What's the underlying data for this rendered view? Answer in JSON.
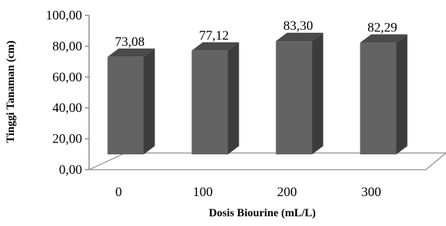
{
  "chart_data": {
    "type": "bar",
    "title": "",
    "xlabel": "Dosis Biourine (mL/L)",
    "ylabel": "Tinggi Tanaman (cm)",
    "categories": [
      "0",
      "100",
      "200",
      "300"
    ],
    "values": [
      73.08,
      77.12,
      83.3,
      82.29
    ],
    "data_labels": [
      "73,08",
      "77,12",
      "83,30",
      "82,29"
    ],
    "y_ticks": [
      "0,00",
      "20,00",
      "40,00",
      "60,00",
      "80,00",
      "100,00"
    ],
    "ylim": [
      0,
      100
    ],
    "grid": false,
    "legend": "none",
    "style": "3d-column",
    "colors": {
      "bar_front": "#636363",
      "bar_side": "#3c3c3c",
      "bar_top": "#4a4a4a",
      "floor": "#9a9a9a"
    }
  }
}
